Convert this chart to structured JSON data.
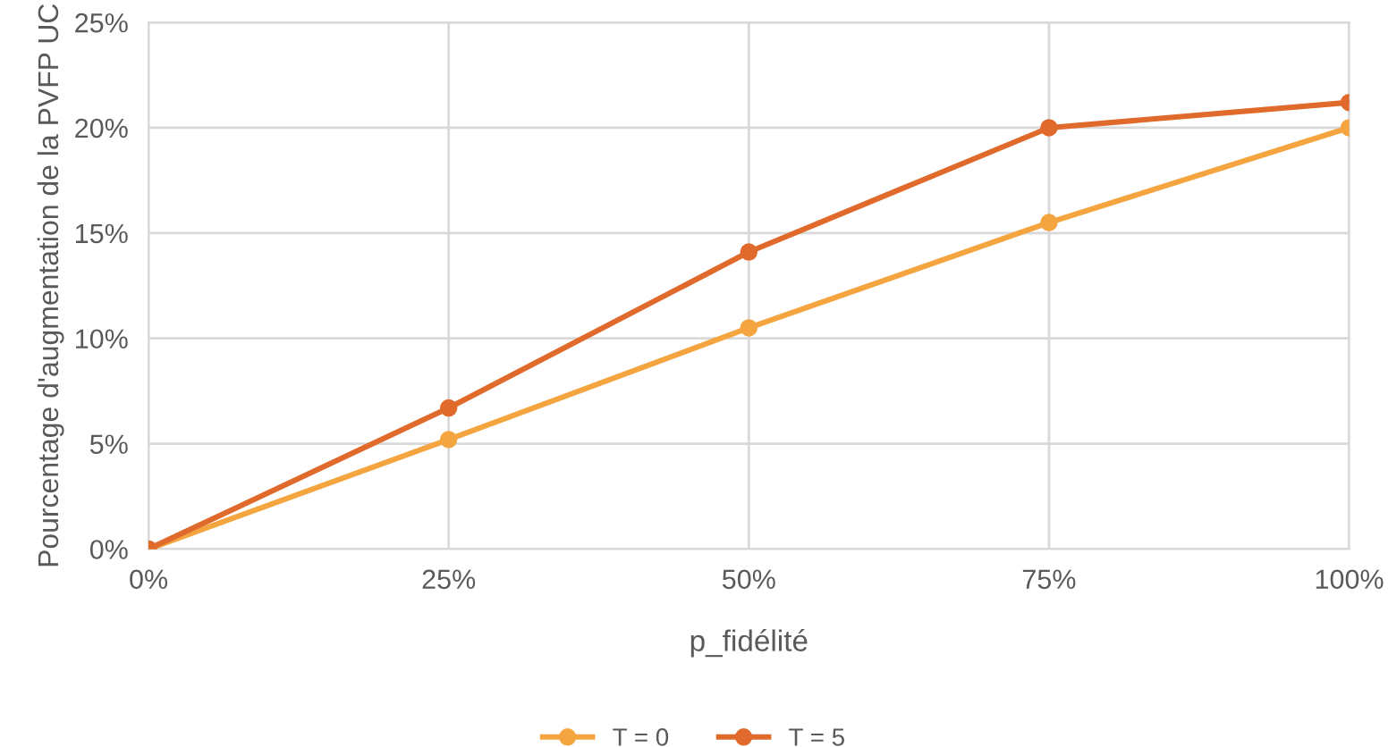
{
  "chart_data": {
    "type": "line",
    "xlabel": "p_fidélité",
    "ylabel": "Pourcentage d'augmentation de la PVFP UC",
    "x": [
      0,
      25,
      50,
      75,
      100
    ],
    "series": [
      {
        "name": "T = 0",
        "color": "#f4a540",
        "values": [
          0,
          5.2,
          10.5,
          15.5,
          20.0
        ]
      },
      {
        "name": "T = 5",
        "color": "#e06a2c",
        "values": [
          0,
          6.7,
          14.1,
          20.0,
          21.2
        ]
      }
    ],
    "xlim": [
      0,
      100
    ],
    "ylim": [
      0,
      25
    ],
    "xticks": [
      {
        "value": 0,
        "label": "0%"
      },
      {
        "value": 25,
        "label": "25%"
      },
      {
        "value": 50,
        "label": "50%"
      },
      {
        "value": 75,
        "label": "75%"
      },
      {
        "value": 100,
        "label": "100%"
      }
    ],
    "yticks": [
      {
        "value": 0,
        "label": "0%"
      },
      {
        "value": 5,
        "label": "5%"
      },
      {
        "value": 10,
        "label": "10%"
      },
      {
        "value": 15,
        "label": "15%"
      },
      {
        "value": 20,
        "label": "20%"
      },
      {
        "value": 25,
        "label": "25%"
      }
    ],
    "grid": true,
    "legend": "bottom",
    "marker": "circle",
    "line_style": "solid"
  }
}
